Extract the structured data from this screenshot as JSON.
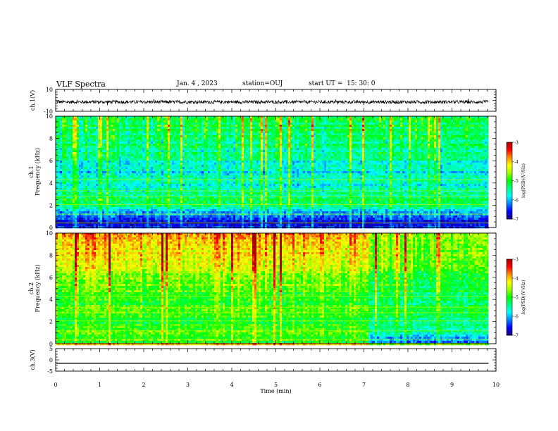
{
  "header": {
    "title": "VLF Spectra",
    "date": "Jan. 4 , 2023",
    "station": "station=OUJ",
    "start_ut": "start UT =  15: 30: 0"
  },
  "colors": {
    "colormap": [
      "#1a0070",
      "#0000ff",
      "#0080ff",
      "#00ffff",
      "#00ff80",
      "#00ff00",
      "#a0ff00",
      "#ffff00",
      "#ff9000",
      "#ff0000",
      "#a00000"
    ],
    "waveform": "#000000",
    "axes": "#000000"
  },
  "chart_data": [
    {
      "type": "line",
      "name": "ch1-waveform",
      "ylabel": "ch.1(V)",
      "ylim": [
        -10,
        10
      ],
      "yticks": [
        "10",
        "-10"
      ],
      "baseline_v": -1.5,
      "amplitude_v": 1.5
    },
    {
      "type": "heatmap",
      "name": "ch1-spectrogram",
      "ylabel_line1": "ch.1",
      "ylabel_line2": "Frequency (kHz)",
      "ylim": [
        0,
        10
      ],
      "yticks": [
        "0",
        "2",
        "4",
        "6",
        "8",
        "10"
      ],
      "xlim": [
        0,
        10
      ],
      "data_end_min": 9.83,
      "colorbar": {
        "label": "log(PSD)(V²/Hz)",
        "range": [
          -7,
          -3
        ],
        "ticks": [
          "-3",
          "-4",
          "-5",
          "-6",
          "-7"
        ]
      },
      "profile_log_psd": [
        {
          "f": 0.0,
          "v": -6.6
        },
        {
          "f": 0.5,
          "v": -6.6
        },
        {
          "f": 1.0,
          "v": -6.3
        },
        {
          "f": 1.5,
          "v": -6.0
        },
        {
          "f": 2.0,
          "v": -5.5
        },
        {
          "f": 2.5,
          "v": -5.3
        },
        {
          "f": 3.0,
          "v": -5.4
        },
        {
          "f": 4.0,
          "v": -5.7
        },
        {
          "f": 5.0,
          "v": -5.8
        },
        {
          "f": 6.0,
          "v": -5.6
        },
        {
          "f": 8.0,
          "v": -5.3
        },
        {
          "f": 10.0,
          "v": -5.2
        }
      ]
    },
    {
      "type": "heatmap",
      "name": "ch2-spectrogram",
      "ylabel_line1": "ch.2",
      "ylabel_line2": "Frequency (kHz)",
      "ylim": [
        0,
        10
      ],
      "yticks": [
        "0",
        "2",
        "4",
        "6",
        "8",
        "10"
      ],
      "xlim": [
        0,
        10
      ],
      "data_end_min": 9.83,
      "transition_min": 7.1,
      "colorbar": {
        "label": "log(PSD)(V²/Hz)",
        "range": [
          -7,
          -3
        ],
        "ticks": [
          "-3",
          "-4",
          "-5",
          "-6",
          "-7"
        ]
      },
      "profile_before_log_psd": [
        {
          "f": 0.0,
          "v": -5.0
        },
        {
          "f": 1.0,
          "v": -4.8
        },
        {
          "f": 2.0,
          "v": -5.0
        },
        {
          "f": 4.0,
          "v": -4.9
        },
        {
          "f": 6.0,
          "v": -4.6
        },
        {
          "f": 8.0,
          "v": -4.2
        },
        {
          "f": 10.0,
          "v": -3.9
        }
      ],
      "profile_after_log_psd": [
        {
          "f": 0.0,
          "v": -6.2
        },
        {
          "f": 0.5,
          "v": -6.0
        },
        {
          "f": 1.0,
          "v": -5.5
        },
        {
          "f": 2.0,
          "v": -5.3
        },
        {
          "f": 4.0,
          "v": -5.2
        },
        {
          "f": 6.0,
          "v": -5.0
        },
        {
          "f": 8.0,
          "v": -4.7
        },
        {
          "f": 10.0,
          "v": -4.6
        }
      ]
    },
    {
      "type": "line",
      "name": "ch3-waveform",
      "ylabel": "ch.3(V)",
      "ylim": [
        -5,
        5
      ],
      "yticks": [
        "5",
        "0",
        "-5"
      ],
      "level_v": -1.5
    }
  ],
  "x_axis": {
    "label": "Time (min)",
    "range": [
      0,
      10
    ],
    "ticks": [
      "0",
      "1",
      "2",
      "3",
      "4",
      "5",
      "6",
      "7",
      "8",
      "9",
      "10"
    ]
  }
}
